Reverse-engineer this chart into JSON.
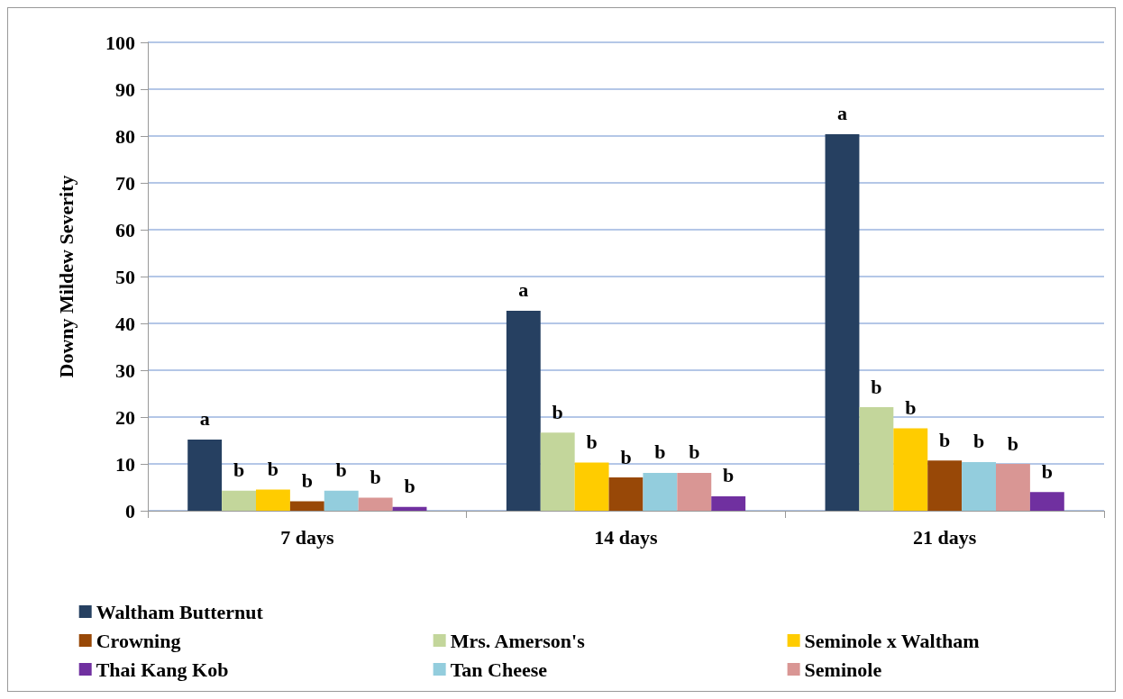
{
  "chart_data": {
    "type": "bar",
    "ylabel": "Downy Mildew Severity",
    "categories": [
      "7 days",
      "14 days",
      "21 days"
    ],
    "series": [
      {
        "name": "Waltham Butternut",
        "color": "#264061",
        "values": [
          15.2,
          42.7,
          80.4
        ],
        "value_labels": [
          "a",
          "a",
          "a"
        ]
      },
      {
        "name": "Mrs. Amerson's",
        "color": "#c3d69b",
        "values": [
          4.3,
          16.7,
          22.1
        ],
        "value_labels": [
          "b",
          "b",
          "b"
        ]
      },
      {
        "name": "Seminole x Waltham",
        "color": "#ffcc00",
        "values": [
          4.5,
          10.3,
          17.6
        ],
        "value_labels": [
          "b",
          "b",
          "b"
        ]
      },
      {
        "name": "Crowning",
        "color": "#984807",
        "values": [
          2.0,
          7.1,
          10.7
        ],
        "value_labels": [
          "b",
          "b",
          "b"
        ]
      },
      {
        "name": "Tan Cheese",
        "color": "#93cddd",
        "values": [
          4.3,
          8.1,
          10.4
        ],
        "value_labels": [
          "b",
          "b",
          "b"
        ]
      },
      {
        "name": "Seminole",
        "color": "#d99694",
        "values": [
          2.8,
          8.1,
          10.0
        ],
        "value_labels": [
          "b",
          "b",
          "b"
        ]
      },
      {
        "name": "Thai Kang Kob",
        "color": "#7030a0",
        "values": [
          0.8,
          3.1,
          4.0
        ],
        "value_labels": [
          "b",
          "b",
          "b"
        ]
      }
    ],
    "ylim": [
      0,
      100
    ],
    "yticks": [
      0,
      10,
      20,
      30,
      40,
      50,
      60,
      70,
      80,
      90,
      100
    ],
    "grid": "y",
    "legend": "bottom"
  }
}
